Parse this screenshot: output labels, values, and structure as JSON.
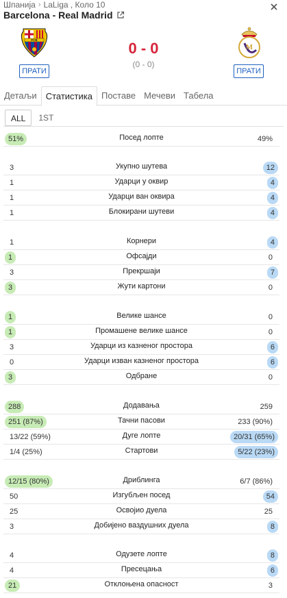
{
  "header": {
    "country": "Шпанија",
    "league": "LaLiga , Коло 10",
    "match_title": "Barcelona - Real Madrid"
  },
  "score": {
    "main": "0 - 0",
    "halftime": "(0 - 0)"
  },
  "teams": {
    "home": {
      "name": "Barcelona",
      "follow_label": "ПРАТИ",
      "crest_text": "FCB"
    },
    "away": {
      "name": "Real Madrid",
      "follow_label": "ПРАТИ"
    }
  },
  "tabs": [
    "Детаљи",
    "Статистика",
    "Поставе",
    "Мечеви",
    "Табела"
  ],
  "active_tab": "Статистика",
  "periods": [
    "ALL",
    "1ST"
  ],
  "active_period": "ALL",
  "colors": {
    "home_win": "#c7ebb5",
    "away_win": "#b9d9f5",
    "score": "#d6243a",
    "accent": "#1e5fbf"
  },
  "stats": [
    {
      "label": "Посед лопте",
      "home": "51%",
      "away": "49%",
      "winner": "home"
    },
    {
      "label": "Укупно шутева",
      "home": "3",
      "away": "12",
      "winner": "away"
    },
    {
      "label": "Ударци у оквир",
      "home": "1",
      "away": "4",
      "winner": "away"
    },
    {
      "label": "Ударци ван оквира",
      "home": "1",
      "away": "4",
      "winner": "away"
    },
    {
      "label": "Блокирани шутеви",
      "home": "1",
      "away": "4",
      "winner": "away"
    },
    {
      "label": "Корнери",
      "home": "1",
      "away": "4",
      "winner": "away"
    },
    {
      "label": "Офсајди",
      "home": "1",
      "away": "0",
      "winner": "home"
    },
    {
      "label": "Прекршаји",
      "home": "3",
      "away": "7",
      "winner": "away"
    },
    {
      "label": "Жути картони",
      "home": "3",
      "away": "0",
      "winner": "home"
    },
    {
      "label": "Велике шансе",
      "home": "1",
      "away": "0",
      "winner": "home"
    },
    {
      "label": "Промашене велике шансе",
      "home": "1",
      "away": "0",
      "winner": "home"
    },
    {
      "label": "Ударци из казненог простора",
      "home": "3",
      "away": "6",
      "winner": "away"
    },
    {
      "label": "Ударци изван казненог простора",
      "home": "0",
      "away": "6",
      "winner": "away"
    },
    {
      "label": "Одбране",
      "home": "3",
      "away": "0",
      "winner": "home"
    },
    {
      "label": "Додавања",
      "home": "288",
      "away": "259",
      "winner": "home"
    },
    {
      "label": "Тачни пасови",
      "home": "251 (87%)",
      "away": "233 (90%)",
      "winner": "home"
    },
    {
      "label": "Дуге лопте",
      "home": "13/22 (59%)",
      "away": "20/31 (65%)",
      "winner": "away"
    },
    {
      "label": "Стартови",
      "home": "1/4 (25%)",
      "away": "5/22 (23%)",
      "winner": "away"
    },
    {
      "label": "Дриблинга",
      "home": "12/15 (80%)",
      "away": "6/7 (86%)",
      "winner": "home"
    },
    {
      "label": "Изгубљен посед",
      "home": "50",
      "away": "54",
      "winner": "away"
    },
    {
      "label": "Освојио дуела",
      "home": "25",
      "away": "25",
      "winner": "none"
    },
    {
      "label": "Добијено ваздушних дуела",
      "home": "3",
      "away": "8",
      "winner": "away"
    },
    {
      "label": "Одузете лопте",
      "home": "4",
      "away": "8",
      "winner": "away"
    },
    {
      "label": "Пресецања",
      "home": "4",
      "away": "6",
      "winner": "away"
    },
    {
      "label": "Отклоњена опасност",
      "home": "21",
      "away": "3",
      "winner": "home"
    }
  ]
}
